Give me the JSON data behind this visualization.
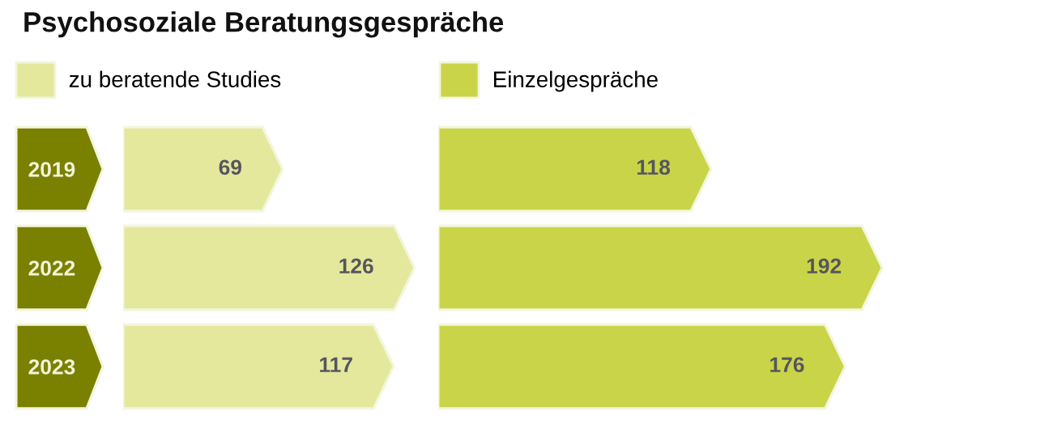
{
  "chart_data": [
    {
      "type": "bar",
      "orientation": "horizontal",
      "title": "Psychosoziale Beratungsgespräche",
      "categories": [
        "2019",
        "2022",
        "2023"
      ],
      "series": [
        {
          "name": "zu beratende Studies",
          "color": "#e4e89c",
          "values": [
            69,
            126,
            117
          ]
        }
      ],
      "data_labels": true,
      "legend": "top left",
      "tick_labels": "y"
    },
    {
      "type": "bar",
      "orientation": "horizontal",
      "categories": [
        "2019",
        "2022",
        "2023"
      ],
      "series": [
        {
          "name": "Einzelgespräche",
          "color": "#c9d448",
          "values": [
            118,
            192,
            176
          ]
        }
      ],
      "data_labels": true,
      "legend": "top left",
      "tick_labels": false
    }
  ]
}
